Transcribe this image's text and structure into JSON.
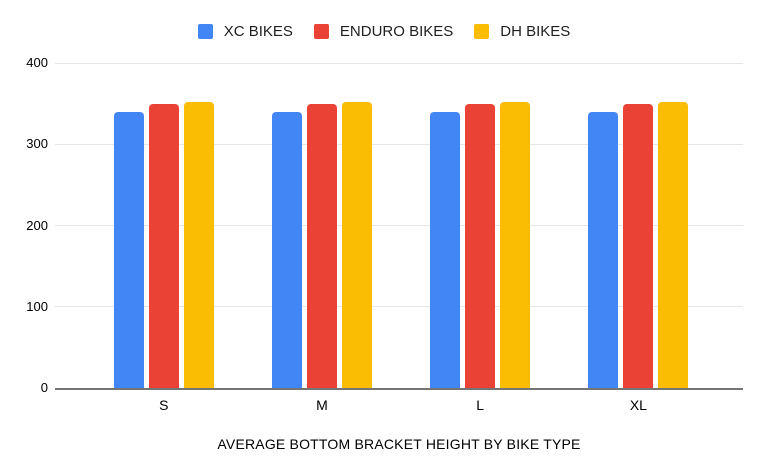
{
  "chart_data": {
    "type": "bar",
    "title": "AVERAGE BOTTOM BRACKET HEIGHT BY BIKE TYPE",
    "categories": [
      "S",
      "M",
      "L",
      "XL"
    ],
    "series": [
      {
        "name": "XC BIKES",
        "color": "#4285F4",
        "values": [
          340,
          340,
          340,
          340
        ]
      },
      {
        "name": "ENDURO BIKES",
        "color": "#EA4335",
        "values": [
          350,
          350,
          350,
          350
        ]
      },
      {
        "name": "DH BIKES",
        "color": "#FBBC04",
        "values": [
          352,
          352,
          352,
          352
        ]
      }
    ],
    "ylim": [
      0,
      400
    ],
    "yticks": [
      0,
      100,
      200,
      300,
      400
    ],
    "xlabel": "",
    "ylabel": "",
    "grid": true,
    "legend_position": "top"
  },
  "colors": {
    "background": "#FFFFFF",
    "gridline": "#E6E6E6",
    "axis_line": "#757575",
    "label_text": "#000000",
    "legend_text": "#1F1F1F"
  }
}
